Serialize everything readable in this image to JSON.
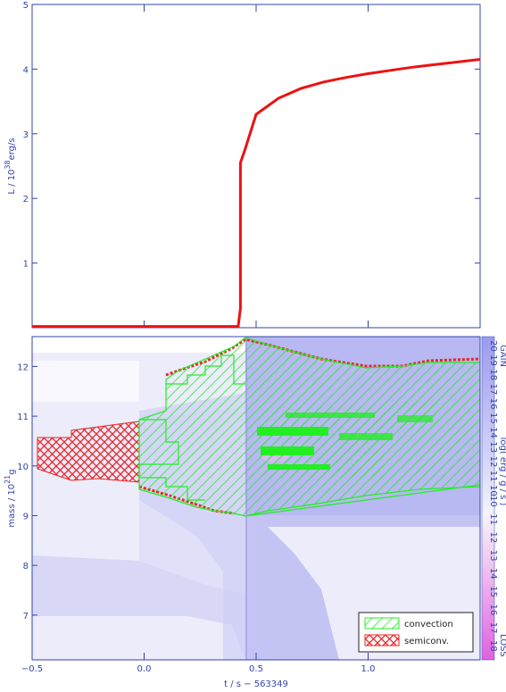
{
  "chart_data": [
    {
      "type": "line",
      "ylabel_main": "L / 10",
      "ylabel_exp": "38",
      "ylabel_unit": "erg/s",
      "xlim": [
        -0.5,
        1.5
      ],
      "ylim": [
        0,
        5
      ],
      "yticks": [
        "1",
        "2",
        "3",
        "4",
        "5"
      ],
      "line_color": "#ee1111",
      "series": [
        {
          "x": [
            -0.5,
            -0.2,
            0.0,
            0.2,
            0.42,
            0.43,
            0.43,
            0.45,
            0.5,
            0.6,
            0.7,
            0.8,
            0.9,
            1.0,
            1.1,
            1.2,
            1.3,
            1.4,
            1.5
          ],
          "y": [
            0.02,
            0.02,
            0.02,
            0.02,
            0.02,
            0.3,
            2.55,
            2.75,
            3.3,
            3.55,
            3.7,
            3.8,
            3.87,
            3.93,
            3.98,
            4.03,
            4.07,
            4.11,
            4.15
          ]
        }
      ]
    },
    {
      "type": "heatmap",
      "xlabel": "t / s − 563349",
      "ylabel_main": "mass / 10",
      "ylabel_exp": "21",
      "ylabel_unit": "g",
      "xlim": [
        -0.5,
        1.5
      ],
      "ylim": [
        6.1,
        12.6
      ],
      "xticks": [
        "−0.5",
        "0.0",
        "0.5",
        "1.0"
      ],
      "xtick_values": [
        -0.5,
        0.0,
        0.5,
        1.0
      ],
      "yticks": [
        "7",
        "8",
        "9",
        "10",
        "11",
        "12"
      ],
      "colorbar": {
        "label": "log( erg / g / s )",
        "gain_label": "GAIN",
        "loss_label": "LOSS",
        "gain_ticks": [
          "10",
          "11",
          "12",
          "13",
          "14",
          "15",
          "16",
          "17",
          "18",
          "19",
          "20"
        ],
        "loss_ticks": [
          "18",
          "17",
          "16",
          "15",
          "14",
          "13",
          "12",
          "11",
          "10"
        ],
        "ellipsis": "...",
        "gain_color": "#9b9bf0",
        "loss_color": "#e060e0"
      },
      "convection_color": "#22ee22",
      "semiconv_color": "#ee2222",
      "legend": {
        "placement": "bottom-right",
        "items": [
          "convection",
          "semiconv."
        ]
      }
    }
  ]
}
